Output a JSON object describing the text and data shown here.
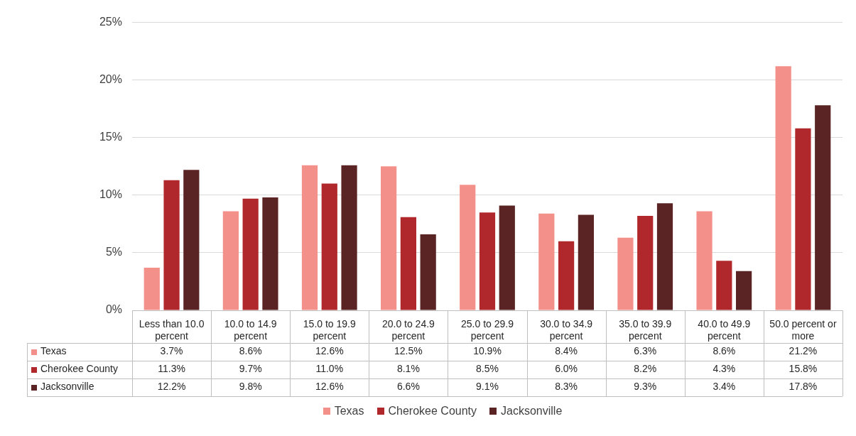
{
  "chart_data": {
    "type": "bar",
    "categories": [
      "Less than 10.0 percent",
      "10.0 to 14.9 percent",
      "15.0 to 19.9 percent",
      "20.0 to 24.9 percent",
      "25.0 to 29.9 percent",
      "30.0 to 34.9 percent",
      "35.0 to 39.9 percent",
      "40.0 to 49.9 percent",
      "50.0 percent or more"
    ],
    "series": [
      {
        "name": "Texas",
        "color": "#f4908a",
        "values": [
          3.7,
          8.6,
          12.6,
          12.5,
          10.9,
          8.4,
          6.3,
          8.6,
          21.2
        ],
        "value_labels": [
          "3.7%",
          "8.6%",
          "12.6%",
          "12.5%",
          "10.9%",
          "8.4%",
          "6.3%",
          "8.6%",
          "21.2%"
        ]
      },
      {
        "name": "Cherokee County",
        "color": "#b0282b",
        "values": [
          11.3,
          9.7,
          11.0,
          8.1,
          8.5,
          6.0,
          8.2,
          4.3,
          15.8
        ],
        "value_labels": [
          "11.3%",
          "9.7%",
          "11.0%",
          "8.1%",
          "8.5%",
          "6.0%",
          "8.2%",
          "4.3%",
          "15.8%"
        ]
      },
      {
        "name": "Jacksonville",
        "color": "#5a2424",
        "values": [
          12.2,
          9.8,
          12.6,
          6.6,
          9.1,
          8.3,
          9.3,
          3.4,
          17.8
        ],
        "value_labels": [
          "12.2%",
          "9.8%",
          "12.6%",
          "6.6%",
          "9.1%",
          "8.3%",
          "9.3%",
          "3.4%",
          "17.8%"
        ]
      }
    ],
    "ylim": [
      0,
      25
    ],
    "yticks": [
      {
        "value": 0,
        "label": "0%"
      },
      {
        "value": 5,
        "label": "5%"
      },
      {
        "value": 10,
        "label": "10%"
      },
      {
        "value": 15,
        "label": "15%"
      },
      {
        "value": 20,
        "label": "20%"
      },
      {
        "value": 25,
        "label": "25%"
      }
    ],
    "grid": "y",
    "legend": "bottom"
  }
}
